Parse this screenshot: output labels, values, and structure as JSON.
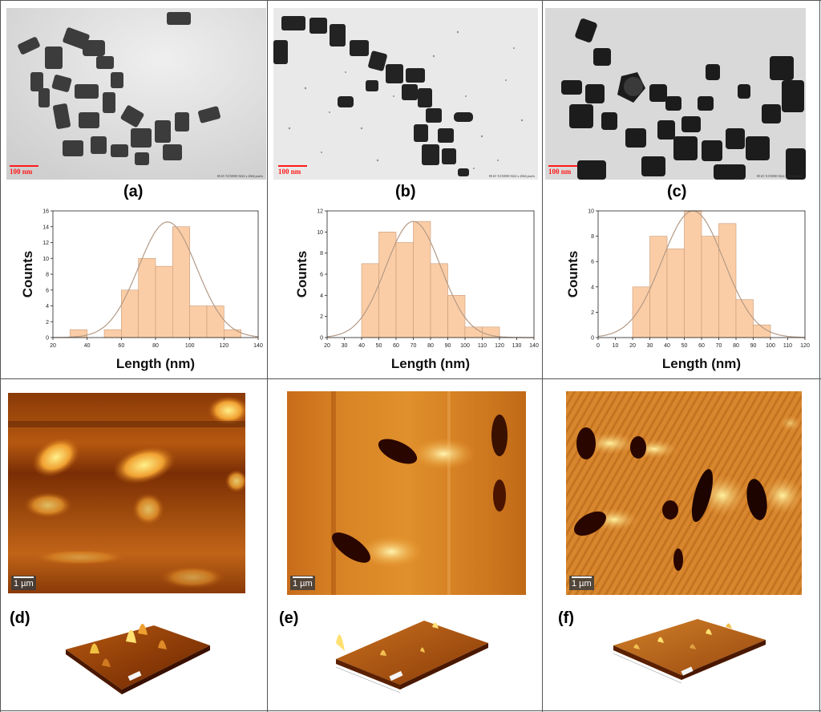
{
  "tem": {
    "scale_label": "100 nm",
    "meta_text": "80 kV  X150000  3622 x 2664 pixels"
  },
  "captions": {
    "a": "(a)",
    "b": "(b)",
    "c": "(c)",
    "d": "(d)",
    "e": "(e)",
    "f": "(f)"
  },
  "afm": {
    "scale_label": "1 µm"
  },
  "colors": {
    "bar_fill": "#fbcda6",
    "bar_edge": "#c89a78",
    "fit_curve": "#b49a86",
    "afm_dark": "#3a1000",
    "afm_mid": "#b5580f",
    "afm_light": "#ffe07a"
  },
  "chart_data": [
    {
      "type": "bar",
      "xlabel": "Length (nm)",
      "ylabel": "Counts",
      "xlim": [
        20,
        140
      ],
      "ylim": [
        0,
        16
      ],
      "xticks": [
        20,
        40,
        60,
        80,
        100,
        120,
        140
      ],
      "yticks": [
        0,
        2,
        4,
        6,
        8,
        10,
        12,
        14,
        16
      ],
      "bins": [
        [
          30,
          40
        ],
        [
          50,
          60
        ],
        [
          60,
          70
        ],
        [
          70,
          80
        ],
        [
          80,
          90
        ],
        [
          90,
          100
        ],
        [
          100,
          110
        ],
        [
          110,
          120
        ],
        [
          120,
          130
        ]
      ],
      "values": [
        1,
        1,
        6,
        10,
        9,
        14,
        4,
        4,
        1
      ],
      "fit": {
        "mean": 87,
        "sigma": 17,
        "peak": 14.6
      }
    },
    {
      "type": "bar",
      "xlabel": "Length (nm)",
      "ylabel": "Counts",
      "xlim": [
        20,
        140
      ],
      "ylim": [
        0,
        12
      ],
      "xticks": [
        20,
        30,
        40,
        50,
        60,
        70,
        80,
        90,
        100,
        110,
        120,
        130,
        140
      ],
      "yticks": [
        0,
        2,
        4,
        6,
        8,
        10,
        12
      ],
      "bins": [
        [
          40,
          50
        ],
        [
          50,
          60
        ],
        [
          60,
          70
        ],
        [
          70,
          80
        ],
        [
          80,
          90
        ],
        [
          90,
          100
        ],
        [
          100,
          110
        ],
        [
          110,
          120
        ]
      ],
      "values": [
        7,
        10,
        9,
        11,
        7,
        4,
        1,
        1
      ],
      "fit": {
        "mean": 70,
        "sigma": 16,
        "peak": 11
      }
    },
    {
      "type": "bar",
      "xlabel": "Length (nm)",
      "ylabel": "Counts",
      "xlim": [
        0,
        120
      ],
      "ylim": [
        0,
        10
      ],
      "xticks": [
        0,
        10,
        20,
        30,
        40,
        50,
        60,
        70,
        80,
        90,
        100,
        110,
        120
      ],
      "yticks": [
        0,
        2,
        4,
        6,
        8,
        10
      ],
      "bins": [
        [
          20,
          30
        ],
        [
          30,
          40
        ],
        [
          40,
          50
        ],
        [
          50,
          60
        ],
        [
          60,
          70
        ],
        [
          70,
          80
        ],
        [
          80,
          90
        ],
        [
          90,
          100
        ]
      ],
      "values": [
        4,
        8,
        7,
        10,
        8,
        9,
        3,
        1
      ],
      "fit": {
        "mean": 55,
        "sigma": 18,
        "peak": 10
      }
    }
  ]
}
